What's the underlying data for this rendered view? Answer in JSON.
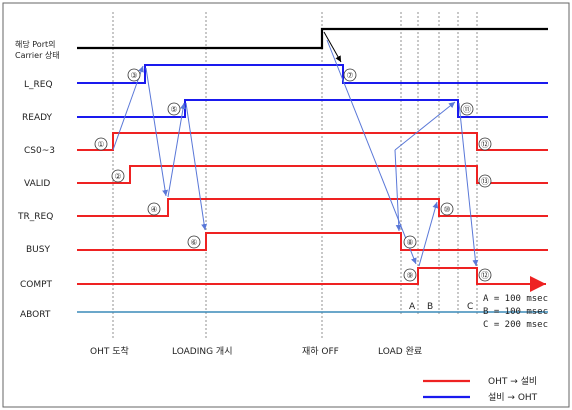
{
  "port_label_line1": "해당 Port의",
  "port_label_line2": "Carrier 상태",
  "signals": {
    "l_req": "L_REQ",
    "ready": "READY",
    "cs": "CS0~3",
    "valid": "VALID",
    "tr_req": "TR_REQ",
    "busy": "BUSY",
    "compt": "COMPT",
    "abort": "ABORT"
  },
  "steps": [
    "①",
    "②",
    "③",
    "④",
    "⑤",
    "⑥",
    "⑦",
    "⑧",
    "⑨",
    "⑩",
    "⑪",
    "⑫",
    "⑬",
    "⑫",
    "⑫"
  ],
  "timing_letters": {
    "a": "A",
    "b": "B",
    "c": "C"
  },
  "timing_notes": [
    "A = 100 msec",
    "B = 100 msec",
    "C = 200 msec"
  ],
  "events": {
    "oht_arrive": "OHT 도착",
    "loading_start": "LOADING 개시",
    "load_off": "재하 OFF",
    "load_done": "LOAD 완료"
  },
  "legend": {
    "red": "OHT → 설비",
    "blue": "설비 → OHT"
  },
  "colors": {
    "red": "#ee2222",
    "blue": "#1a1aee",
    "black": "#000000",
    "abort": "#3a8ab8",
    "arrow": "#5a78d8"
  }
}
